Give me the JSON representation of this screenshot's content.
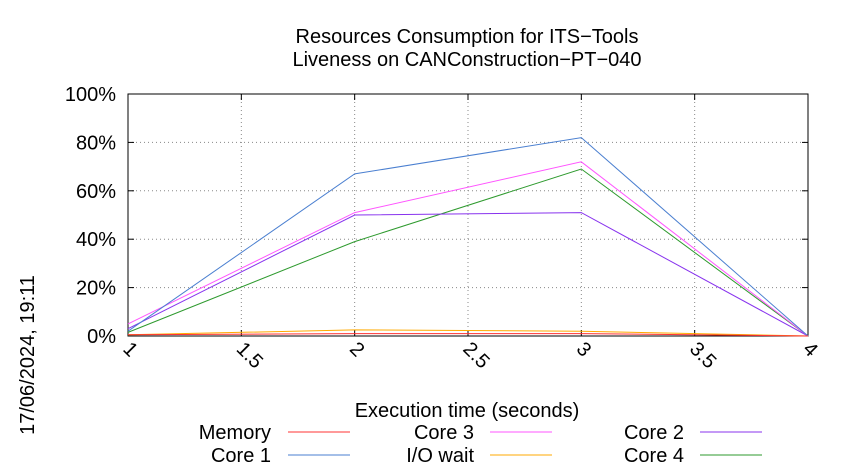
{
  "chart_data": {
    "type": "line",
    "title": [
      "Resources Consumption for ITS−Tools",
      "Liveness on CANConstruction−PT−040"
    ],
    "xlabel": "Execution time (seconds)",
    "ylabel": "",
    "timestamp": "17/06/2024, 19:11",
    "xlim": [
      1,
      4
    ],
    "ylim": [
      0,
      100
    ],
    "x_ticks": [
      "1",
      "1.5",
      "2",
      "2.5",
      "3",
      "3.5",
      "4"
    ],
    "y_ticks": [
      "0%",
      "20%",
      "40%",
      "60%",
      "80%",
      "100%"
    ],
    "grid": true,
    "legend_position": "bottom",
    "x": [
      1,
      2,
      3,
      4
    ],
    "series": [
      {
        "name": "Memory",
        "color": "#ff3333",
        "values": [
          0.5,
          1,
          1,
          0
        ]
      },
      {
        "name": "Core 1",
        "color": "#4a7fd0",
        "values": [
          2,
          67,
          82,
          0
        ]
      },
      {
        "name": "Core 3",
        "color": "#ff55ff",
        "values": [
          5,
          51,
          72,
          0
        ]
      },
      {
        "name": "I/O wait",
        "color": "#ffaa00",
        "values": [
          0.5,
          2.5,
          2,
          0
        ]
      },
      {
        "name": "Core 2",
        "color": "#8833ee",
        "values": [
          3,
          50,
          51,
          0
        ]
      },
      {
        "name": "Core 4",
        "color": "#2e9a2e",
        "values": [
          1.5,
          39,
          69,
          0
        ]
      }
    ]
  }
}
